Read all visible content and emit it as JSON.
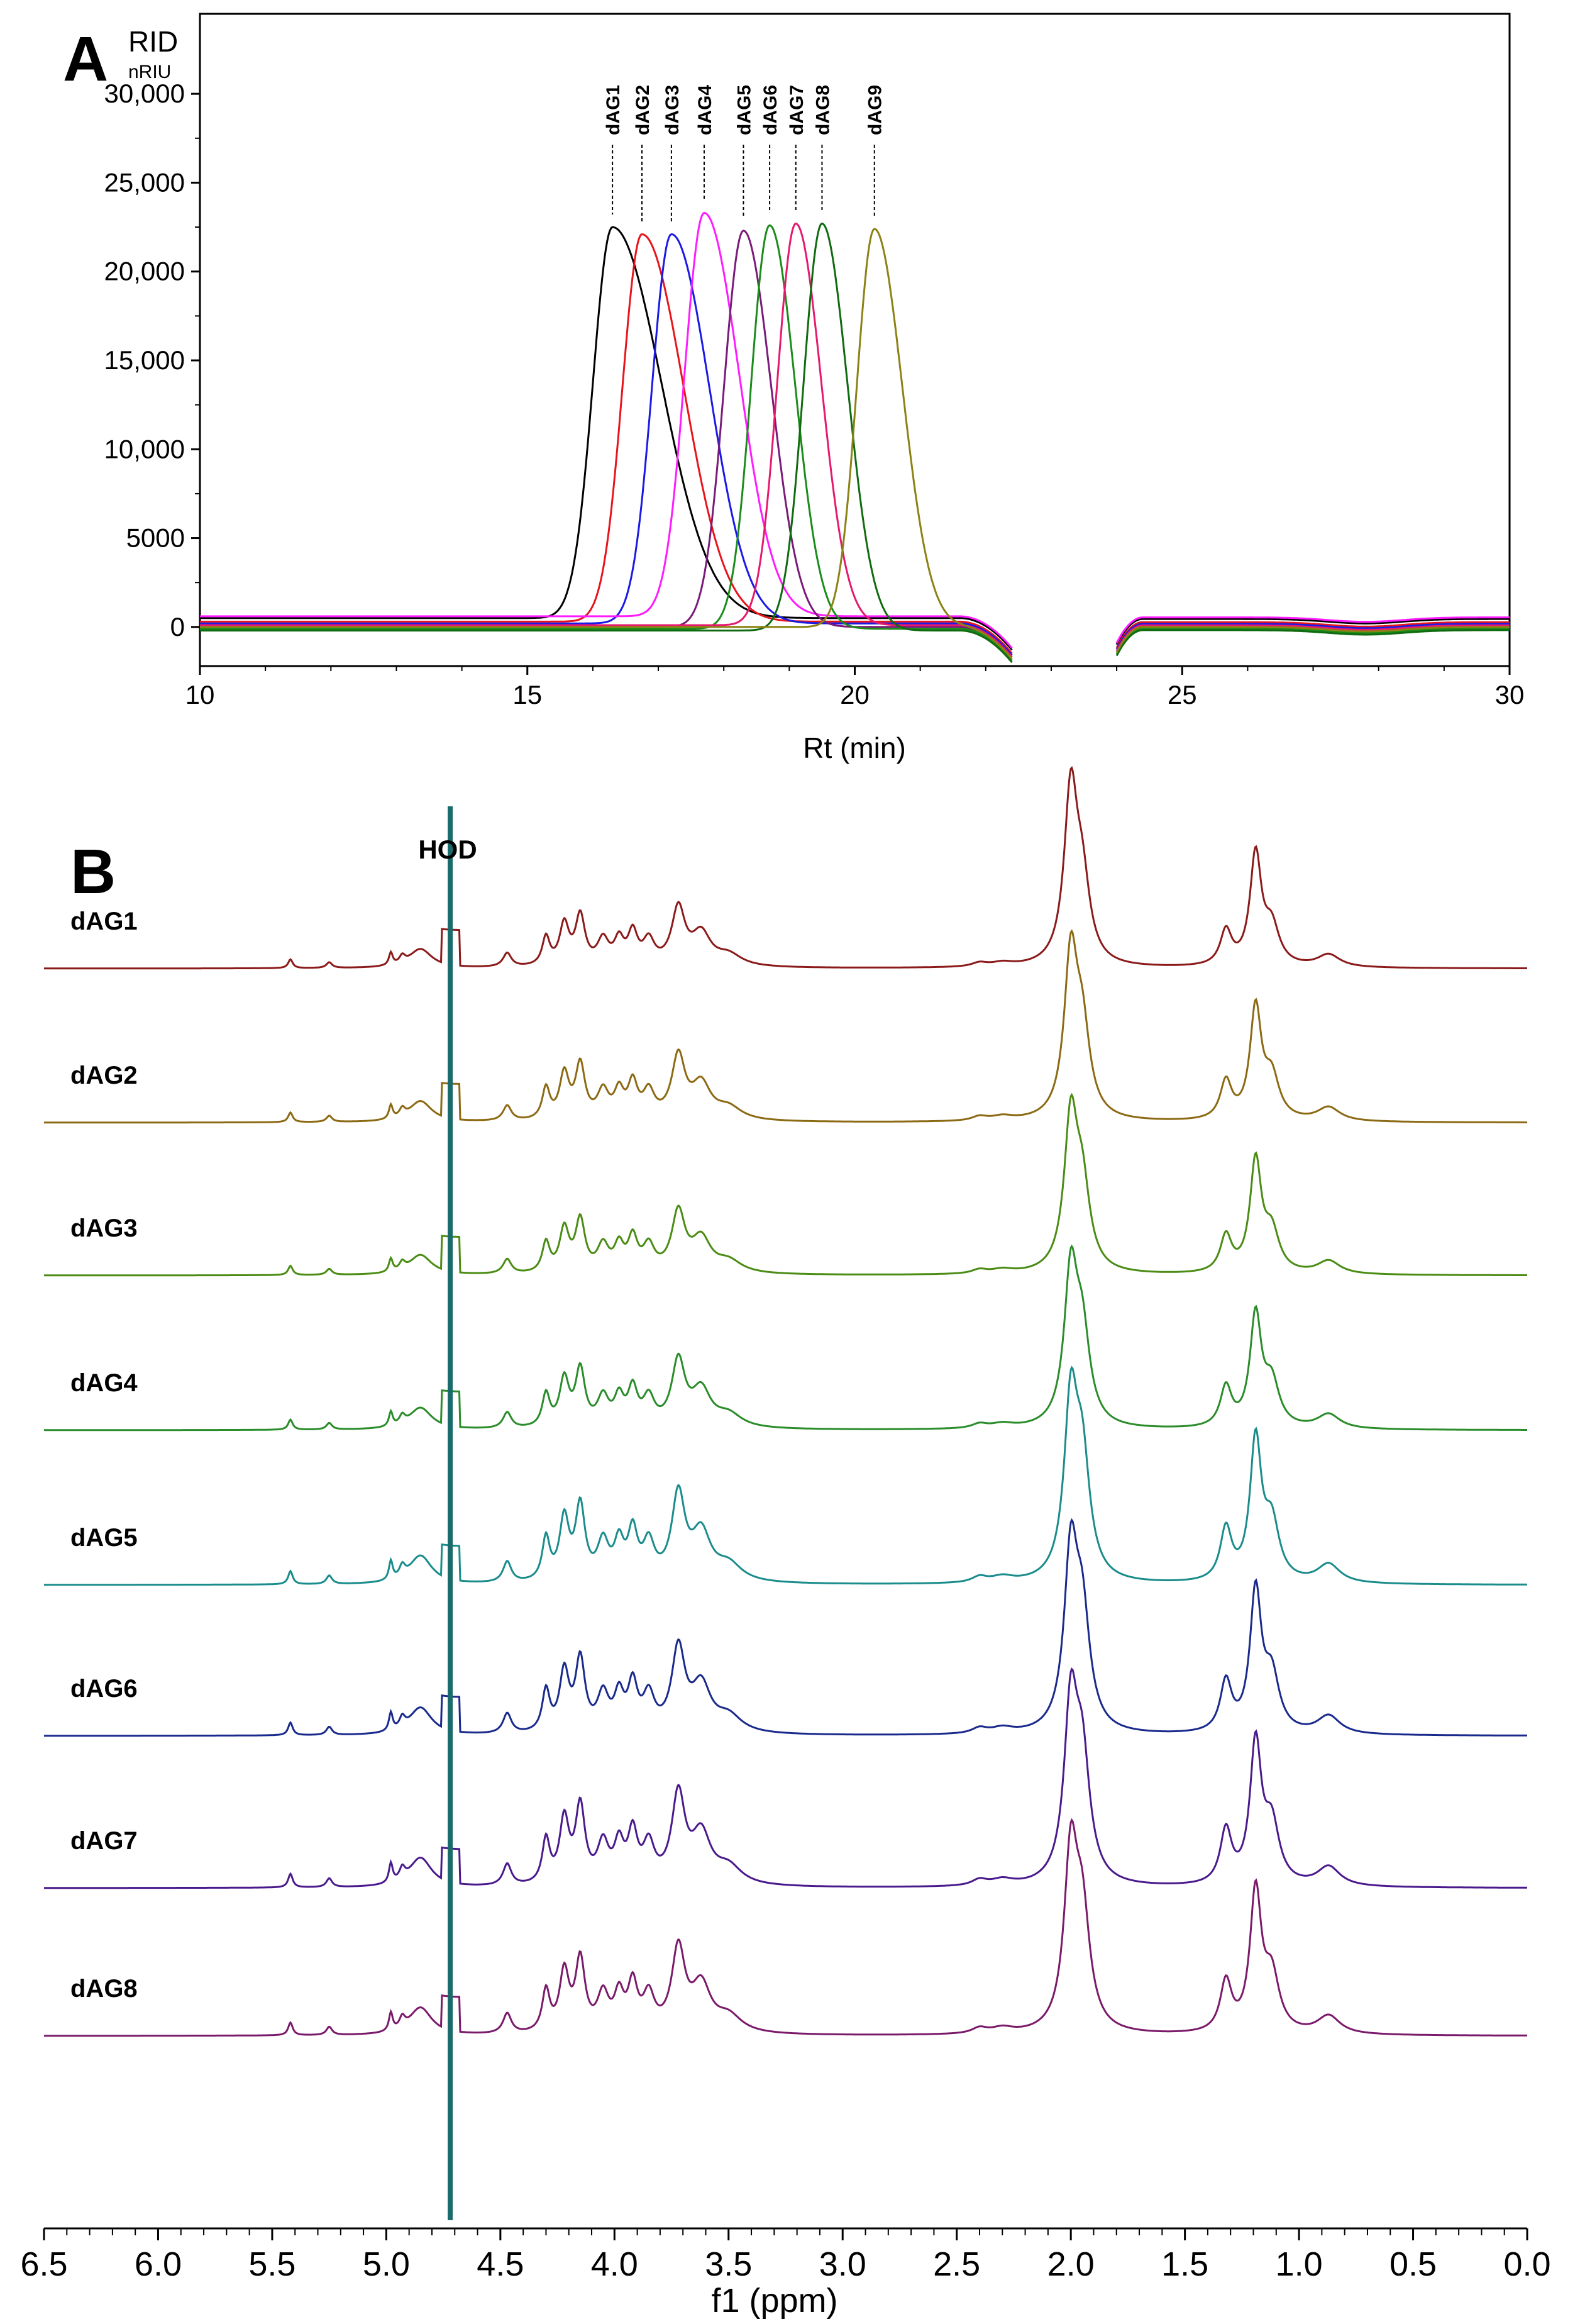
{
  "chart_data": [
    {
      "panel": "A",
      "type": "line",
      "title": "",
      "xlabel": "Rt (min)",
      "ylabel": "RID",
      "yunit": "nRIU",
      "xlim": [
        10,
        30
      ],
      "ylim": [
        -2200,
        34500
      ],
      "xticks": [
        10,
        15,
        20,
        25,
        30
      ],
      "yticks": [
        0,
        5000,
        10000,
        15000,
        20000,
        25000,
        30000
      ],
      "ytick_labels": [
        "0",
        "5000",
        "10,000",
        "15,000",
        "20,000",
        "25,000",
        "30,000"
      ],
      "baseline_gap": [
        22.4,
        24.0
      ],
      "series": [
        {
          "name": "dAG1",
          "color": "#000000",
          "peak_rt": 16.3,
          "peak_height": 22000,
          "width_left": 0.42,
          "width_right": 1.05,
          "baseline": 500
        },
        {
          "name": "dAG2",
          "color": "#e8141c",
          "peak_rt": 16.75,
          "peak_height": 21800,
          "width_left": 0.42,
          "width_right": 0.9,
          "baseline": 300
        },
        {
          "name": "dAG3",
          "color": "#1a1ae6",
          "peak_rt": 17.2,
          "peak_height": 21900,
          "width_left": 0.42,
          "width_right": 0.82,
          "baseline": 200
        },
        {
          "name": "dAG4",
          "color": "#ff1aff",
          "peak_rt": 17.7,
          "peak_height": 22700,
          "width_left": 0.42,
          "width_right": 0.75,
          "baseline": 600
        },
        {
          "name": "dAG5",
          "color": "#7a1a7a",
          "peak_rt": 18.3,
          "peak_height": 22300,
          "width_left": 0.42,
          "width_right": 0.6,
          "baseline": 0
        },
        {
          "name": "dAG6",
          "color": "#1a8c1a",
          "peak_rt": 18.7,
          "peak_height": 22700,
          "width_left": 0.4,
          "width_right": 0.55,
          "baseline": -100
        },
        {
          "name": "dAG7",
          "color": "#e6196e",
          "peak_rt": 19.1,
          "peak_height": 22600,
          "width_left": 0.4,
          "width_right": 0.55,
          "baseline": 100
        },
        {
          "name": "dAG8",
          "color": "#0f6b0f",
          "peak_rt": 19.5,
          "peak_height": 22900,
          "width_left": 0.4,
          "width_right": 0.55,
          "baseline": -200
        },
        {
          "name": "dAG9",
          "color": "#8c8214",
          "peak_rt": 20.3,
          "peak_height": 22400,
          "width_left": 0.38,
          "width_right": 0.6,
          "baseline": 0
        }
      ]
    },
    {
      "panel": "B",
      "type": "line",
      "title": "",
      "xlabel": "f1 (ppm)",
      "xlim": [
        6.5,
        0.0
      ],
      "xticks": [
        6.5,
        6.0,
        5.5,
        5.0,
        4.5,
        4.0,
        3.5,
        3.0,
        2.5,
        2.0,
        1.5,
        1.0,
        0.5,
        0.0
      ],
      "xtick_labels": [
        "6.5",
        "6.0",
        "5.5",
        "5.0",
        "4.5",
        "4.0",
        "3.5",
        "3.0",
        "2.5",
        "2.0",
        "1.5",
        "1.0",
        "0.5",
        "0.0"
      ],
      "annotation": "HOD",
      "hod_ppm": 4.72,
      "peaks_ppm": [
        5.42,
        5.25,
        4.98,
        4.47,
        4.22,
        4.15,
        3.92,
        3.72,
        2.0,
        1.32,
        1.19,
        0.87
      ],
      "series": [
        {
          "name": "dAG1",
          "color": "#8b1a1a"
        },
        {
          "name": "dAG2",
          "color": "#8c6a14"
        },
        {
          "name": "dAG3",
          "color": "#4a8c14"
        },
        {
          "name": "dAG4",
          "color": "#2a8c2a"
        },
        {
          "name": "dAG5",
          "color": "#1a8c8c"
        },
        {
          "name": "dAG6",
          "color": "#1a2a8c"
        },
        {
          "name": "dAG7",
          "color": "#4a1a8c"
        },
        {
          "name": "dAG8",
          "color": "#7a1a6a"
        }
      ]
    }
  ]
}
